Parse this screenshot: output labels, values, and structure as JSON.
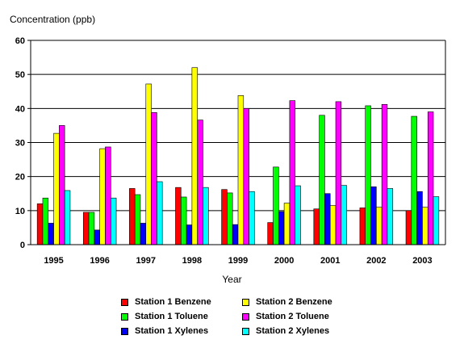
{
  "chart_data": {
    "type": "bar",
    "ylabel": "Concentration (ppb)",
    "xlabel": "Year",
    "ylim": [
      0,
      60
    ],
    "yticks": [
      "0",
      "10",
      "20",
      "30",
      "40",
      "50",
      "60"
    ],
    "grid": true,
    "legend_position": "bottom",
    "categories": [
      "1995",
      "1996",
      "1997",
      "1998",
      "1999",
      "2000",
      "2001",
      "2002",
      "2003"
    ],
    "series": [
      {
        "name": "Station 1 Benzene",
        "color": "#ff0000",
        "values": [
          12,
          9.5,
          16.5,
          16.8,
          16.2,
          6.5,
          10.5,
          10.8,
          10
        ]
      },
      {
        "name": "Station 1 Toluene",
        "color": "#00ff00",
        "values": [
          13.7,
          9.5,
          14.7,
          14,
          15.2,
          22.8,
          38,
          40.8,
          37.7
        ]
      },
      {
        "name": "Station 1 Xylenes",
        "color": "#0000ff",
        "values": [
          6.3,
          4.3,
          6.3,
          5.8,
          5.9,
          9.7,
          15,
          17,
          15.6
        ]
      },
      {
        "name": "Station 2 Benzene",
        "color": "#ffff00",
        "values": [
          32.7,
          28.2,
          47.2,
          52,
          43.8,
          12.2,
          11.5,
          11,
          11
        ]
      },
      {
        "name": "Station 2 Toluene",
        "color": "#ff00ff",
        "values": [
          35,
          28.7,
          38.8,
          36.6,
          40,
          42.3,
          42,
          41.2,
          39
        ]
      },
      {
        "name": "Station 2 Xylenes",
        "color": "#00ffff",
        "values": [
          15.9,
          13.7,
          18.5,
          16.8,
          15.6,
          17.3,
          17.4,
          16.5,
          14.1
        ]
      }
    ]
  }
}
